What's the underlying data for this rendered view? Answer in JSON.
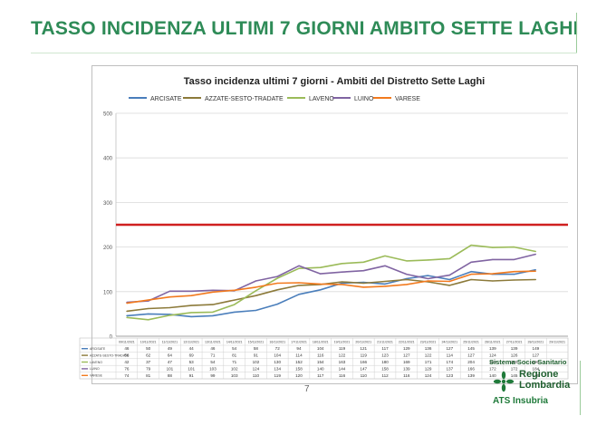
{
  "slide": {
    "title": "TASSO INCIDENZA ULTIMI 7 GIORNI AMBITO SETTE LAGHI",
    "page_number": "7"
  },
  "logo": {
    "system_label": "Sistema Socio Sanitario",
    "region_line1": "Regione",
    "region_line2": "Lombardia",
    "agency": "ATS Insubria",
    "color": "#1f7a3a"
  },
  "chart_data": {
    "type": "line",
    "title": "Tasso incidenza ultimi 7 giorni - Ambiti del Distretto Sette Laghi",
    "ylim": [
      0,
      500
    ],
    "yticks": [
      0,
      100,
      200,
      300,
      400,
      500
    ],
    "grid": true,
    "legend_position": "top",
    "threshold": {
      "value": 250,
      "color": "#d02020"
    },
    "categories": [
      "09/11/2021",
      "10/11/2021",
      "11/11/2021",
      "12/11/2021",
      "13/11/2021",
      "14/11/2021",
      "15/11/2021",
      "16/11/2021",
      "17/11/2021",
      "18/11/2021",
      "19/11/2021",
      "20/11/2021",
      "21/11/2021",
      "22/11/2021",
      "23/11/2021",
      "24/11/2021",
      "25/11/2021",
      "26/11/2021",
      "27/11/2021",
      "28/11/2021",
      "29/11/2021"
    ],
    "series": [
      {
        "name": "ARCISATE",
        "color": "#4a7ebb",
        "values": [
          46,
          50,
          49,
          44,
          46,
          54,
          58,
          72,
          94,
          104,
          119,
          121,
          117,
          129,
          136,
          127,
          145,
          139,
          139,
          149,
          null
        ]
      },
      {
        "name": "AZZATE-SESTO-TRADATE",
        "color": "#8c7a3a",
        "values": [
          56,
          62,
          64,
          69,
          71,
          81,
          91,
          104,
          114,
          116,
          122,
          119,
          123,
          127,
          122,
          114,
          127,
          124,
          126,
          127,
          null
        ]
      },
      {
        "name": "LAVENO",
        "color": "#9bbb59",
        "values": [
          42,
          37,
          47,
          53,
          54,
          71,
          102,
          130,
          152,
          154,
          163,
          166,
          180,
          169,
          171,
          174,
          204,
          199,
          200,
          190,
          null
        ]
      },
      {
        "name": "LUINO",
        "color": "#8064a2",
        "values": [
          76,
          79,
          101,
          101,
          103,
          102,
          124,
          134,
          158,
          140,
          144,
          147,
          158,
          139,
          129,
          137,
          166,
          172,
          172,
          184,
          null
        ]
      },
      {
        "name": "VARESE",
        "color": "#f27a1e",
        "values": [
          74,
          81,
          88,
          91,
          99,
          103,
          110,
          119,
          120,
          117,
          116,
          110,
          112,
          116,
          124,
          123,
          139,
          140,
          145,
          146,
          null
        ]
      }
    ]
  }
}
